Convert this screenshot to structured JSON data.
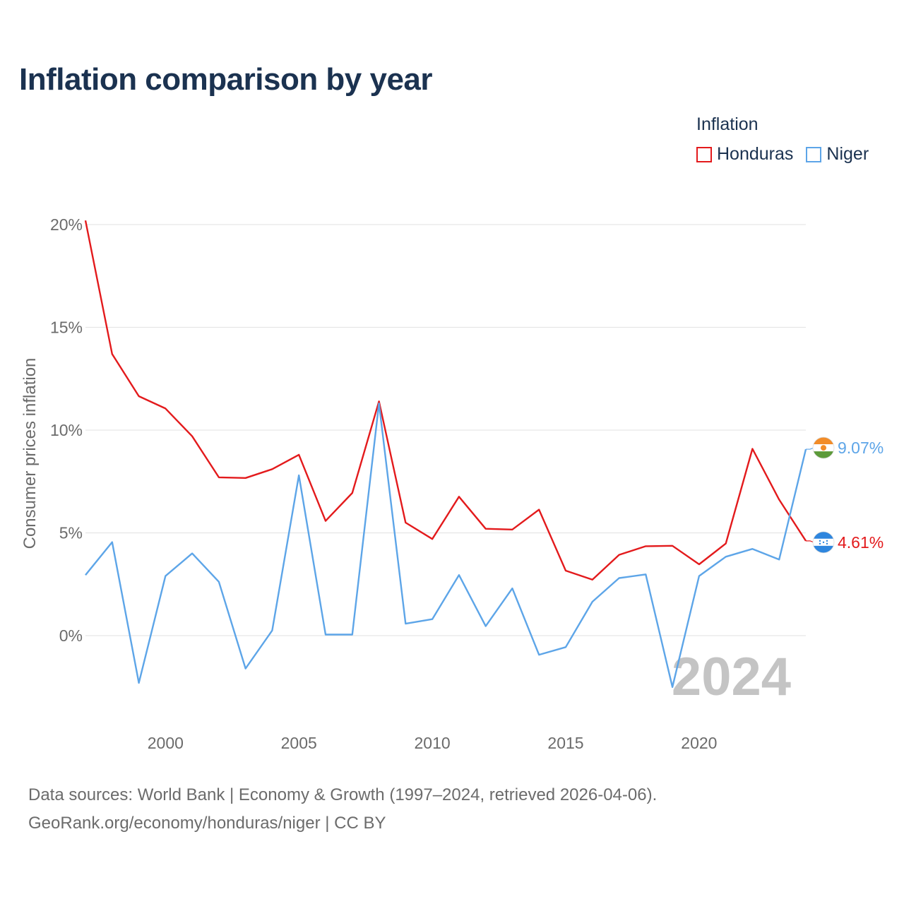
{
  "title": "Inflation comparison by year",
  "legend": {
    "title": "Inflation",
    "items": [
      {
        "label": "Honduras",
        "color": "#e31a1c"
      },
      {
        "label": "Niger",
        "color": "#5da5e8"
      }
    ]
  },
  "footer": {
    "line1": "Data sources: World Bank | Economy & Growth (1997–2024, retrieved 2026-04-06).",
    "line2": "GeoRank.org/economy/honduras/niger | CC BY"
  },
  "chart_data": {
    "type": "line",
    "title": "Inflation comparison by year",
    "xlabel": "",
    "ylabel": "Consumer prices inflation",
    "xlim": [
      1997,
      2024
    ],
    "ylim": [
      -3.8,
      21
    ],
    "x": [
      1997,
      1998,
      1999,
      2000,
      2001,
      2002,
      2003,
      2004,
      2005,
      2006,
      2007,
      2008,
      2009,
      2010,
      2011,
      2012,
      2013,
      2014,
      2015,
      2016,
      2017,
      2018,
      2019,
      2020,
      2021,
      2022,
      2023,
      2024
    ],
    "x_ticks": [
      2000,
      2005,
      2010,
      2015,
      2020
    ],
    "y_ticks": [
      0,
      5,
      10,
      15,
      20
    ],
    "y_tick_labels": [
      "0%",
      "5%",
      "10%",
      "15%",
      "20%"
    ],
    "grid": true,
    "year_watermark": "2024",
    "series": [
      {
        "name": "Honduras",
        "color": "#e31a1c",
        "values": [
          20.2,
          13.7,
          11.65,
          11.05,
          9.7,
          7.7,
          7.67,
          8.1,
          8.8,
          5.58,
          6.94,
          11.4,
          5.5,
          4.7,
          6.76,
          5.2,
          5.16,
          6.13,
          3.16,
          2.72,
          3.93,
          4.35,
          4.37,
          3.47,
          4.48,
          9.09,
          6.62,
          4.61
        ],
        "end_label": "4.61%"
      },
      {
        "name": "Niger",
        "color": "#5da5e8",
        "values": [
          2.95,
          4.55,
          -2.3,
          2.9,
          4.0,
          2.62,
          -1.6,
          0.25,
          7.8,
          0.05,
          0.05,
          11.3,
          0.58,
          0.8,
          2.95,
          0.46,
          2.3,
          -0.93,
          -0.56,
          1.65,
          2.8,
          2.98,
          -2.5,
          2.9,
          3.84,
          4.22,
          3.7,
          9.07
        ],
        "end_label": "9.07%"
      }
    ]
  }
}
